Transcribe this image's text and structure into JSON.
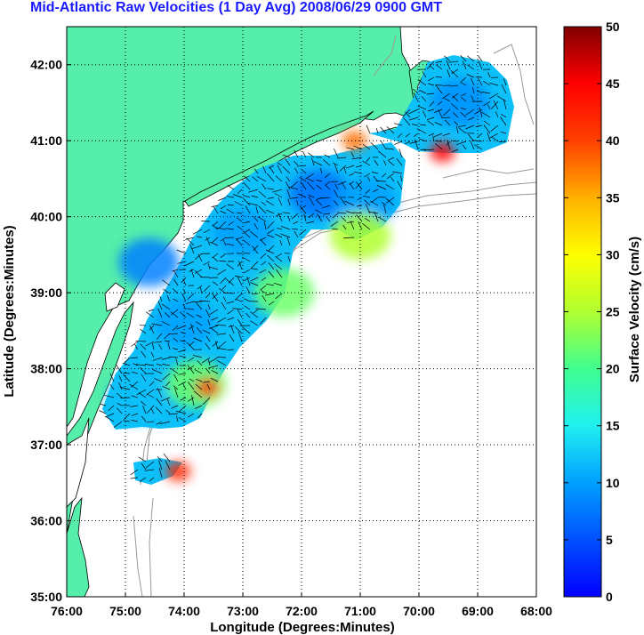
{
  "title": "Mid-Atlantic Raw Velocities (1 Day Avg) 2008/06/29 0900 GMT",
  "xlabel": "Longitude (Degrees:Minutes)",
  "ylabel": "Latitude (Degrees:Minutes)",
  "x_ticks": [
    "76:00",
    "75:00",
    "74:00",
    "73:00",
    "72:00",
    "71:00",
    "70:00",
    "69:00",
    "68:00"
  ],
  "y_ticks": [
    "42:00",
    "41:00",
    "40:00",
    "39:00",
    "38:00",
    "37:00",
    "36:00",
    "35:00"
  ],
  "colorbar": {
    "label": "Surface Velocity (cm/s)",
    "ticks": [
      "50",
      "45",
      "40",
      "35",
      "30",
      "25",
      "20",
      "15",
      "10",
      "5",
      "0"
    ],
    "range": [
      0,
      50
    ]
  },
  "colors": {
    "land": "#55eeaa",
    "ocean": "#ffffff",
    "title": "#1a1aff",
    "bathymetry": "#999999",
    "colormap": [
      "#0000ff",
      "#00bfff",
      "#20f0d0",
      "#ffff00",
      "#ff8000",
      "#ff0000",
      "#800000"
    ]
  },
  "chart_data": {
    "type": "heatmap",
    "title": "Mid-Atlantic Raw Velocities (1 Day Avg) 2008/06/29 0900 GMT",
    "xlabel": "Longitude (Degrees:Minutes)",
    "ylabel": "Latitude (Degrees:Minutes)",
    "xlim": [
      -76,
      -68
    ],
    "ylim": [
      35,
      42.5
    ],
    "grid": true,
    "colorbar_label": "Surface Velocity (cm/s)",
    "colorbar_range": [
      0,
      50
    ],
    "speed_regions": [
      {
        "lon": -74.6,
        "lat": 39.4,
        "speed": 8
      },
      {
        "lon": -74.0,
        "lat": 38.6,
        "speed": 10
      },
      {
        "lon": -73.0,
        "lat": 39.8,
        "speed": 10
      },
      {
        "lon": -71.7,
        "lat": 40.3,
        "speed": 7
      },
      {
        "lon": -70.9,
        "lat": 40.2,
        "speed": 10
      },
      {
        "lon": -69.3,
        "lat": 41.5,
        "speed": 9
      },
      {
        "lon": -74.8,
        "lat": 37.6,
        "speed": 12
      },
      {
        "lon": -73.8,
        "lat": 37.8,
        "speed": 22
      },
      {
        "lon": -73.6,
        "lat": 37.75,
        "speed": 40
      },
      {
        "lon": -71.1,
        "lat": 41.0,
        "speed": 38
      },
      {
        "lon": -69.6,
        "lat": 40.85,
        "speed": 45
      },
      {
        "lon": -74.1,
        "lat": 36.65,
        "speed": 42
      },
      {
        "lon": -72.3,
        "lat": 39.0,
        "speed": 22
      },
      {
        "lon": -71.0,
        "lat": 39.75,
        "speed": 25
      }
    ]
  }
}
